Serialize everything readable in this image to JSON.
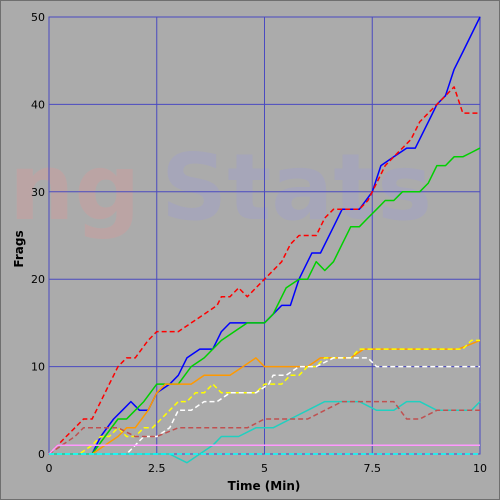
{
  "chart_data": {
    "type": "line",
    "xlabel": "Time (Min)",
    "ylabel": "Frags",
    "xlim": [
      0,
      10
    ],
    "ylim": [
      0,
      50
    ],
    "xticks": [
      "0",
      "2.5",
      "5",
      "7.5",
      "10"
    ],
    "yticks": [
      "0",
      "10",
      "20",
      "30",
      "40",
      "50"
    ],
    "grid": true,
    "watermark": {
      "prefix": "ng",
      "suffix": "Stats"
    },
    "series": [
      {
        "color": "#0000ff",
        "dash": "solid",
        "points": [
          [
            0,
            0
          ],
          [
            1,
            0
          ],
          [
            1.2,
            2
          ],
          [
            1.5,
            4
          ],
          [
            1.7,
            5
          ],
          [
            1.9,
            6
          ],
          [
            2.1,
            5
          ],
          [
            2.3,
            5
          ],
          [
            2.5,
            7
          ],
          [
            2.8,
            8
          ],
          [
            3,
            9
          ],
          [
            3.2,
            11
          ],
          [
            3.5,
            12
          ],
          [
            3.8,
            12
          ],
          [
            4,
            14
          ],
          [
            4.2,
            15
          ],
          [
            4.5,
            15
          ],
          [
            4.8,
            15
          ],
          [
            5,
            15
          ],
          [
            5.2,
            16
          ],
          [
            5.4,
            17
          ],
          [
            5.6,
            17
          ],
          [
            5.8,
            20
          ],
          [
            6.1,
            23
          ],
          [
            6.3,
            23
          ],
          [
            6.6,
            26
          ],
          [
            6.8,
            28
          ],
          [
            7.2,
            28
          ],
          [
            7.5,
            30
          ],
          [
            7.7,
            33
          ],
          [
            8,
            34
          ],
          [
            8.3,
            35
          ],
          [
            8.5,
            35
          ],
          [
            8.8,
            38
          ],
          [
            9,
            40
          ],
          [
            9.2,
            41
          ],
          [
            9.4,
            44
          ],
          [
            9.6,
            46
          ],
          [
            9.8,
            48
          ],
          [
            10,
            50
          ]
        ]
      },
      {
        "color": "#ff0000",
        "dash": "dashed",
        "points": [
          [
            0,
            0
          ],
          [
            0.4,
            2
          ],
          [
            0.6,
            3
          ],
          [
            0.8,
            4
          ],
          [
            1,
            4
          ],
          [
            1.2,
            6
          ],
          [
            1.4,
            8
          ],
          [
            1.6,
            10
          ],
          [
            1.8,
            11
          ],
          [
            2,
            11
          ],
          [
            2.3,
            13
          ],
          [
            2.5,
            14
          ],
          [
            3,
            14
          ],
          [
            3.3,
            15
          ],
          [
            3.6,
            16
          ],
          [
            3.9,
            17
          ],
          [
            4,
            18
          ],
          [
            4.2,
            18
          ],
          [
            4.4,
            19
          ],
          [
            4.6,
            18
          ],
          [
            4.8,
            19
          ],
          [
            5,
            20
          ],
          [
            5.2,
            21
          ],
          [
            5.4,
            22
          ],
          [
            5.6,
            24
          ],
          [
            5.8,
            25
          ],
          [
            6.2,
            25
          ],
          [
            6.4,
            27
          ],
          [
            6.6,
            28
          ],
          [
            7,
            28
          ],
          [
            7.2,
            28
          ],
          [
            7.4,
            29
          ],
          [
            7.6,
            31
          ],
          [
            7.8,
            33
          ],
          [
            8,
            34
          ],
          [
            8.2,
            35
          ],
          [
            8.4,
            36
          ],
          [
            8.6,
            38
          ],
          [
            8.8,
            39
          ],
          [
            9,
            40
          ],
          [
            9.2,
            41
          ],
          [
            9.4,
            42
          ],
          [
            9.6,
            39
          ],
          [
            10,
            39
          ]
        ]
      },
      {
        "color": "#00d000",
        "dash": "solid",
        "points": [
          [
            0,
            0
          ],
          [
            1,
            0
          ],
          [
            1.3,
            2
          ],
          [
            1.6,
            4
          ],
          [
            1.8,
            4
          ],
          [
            2,
            5
          ],
          [
            2.2,
            6
          ],
          [
            2.5,
            8
          ],
          [
            3,
            8
          ],
          [
            3.3,
            10
          ],
          [
            3.6,
            11
          ],
          [
            4,
            13
          ],
          [
            4.3,
            14
          ],
          [
            4.6,
            15
          ],
          [
            5,
            15
          ],
          [
            5.2,
            16
          ],
          [
            5.5,
            19
          ],
          [
            5.8,
            20
          ],
          [
            6,
            20
          ],
          [
            6.2,
            22
          ],
          [
            6.4,
            21
          ],
          [
            6.6,
            22
          ],
          [
            6.8,
            24
          ],
          [
            7,
            26
          ],
          [
            7.2,
            26
          ],
          [
            7.4,
            27
          ],
          [
            7.6,
            28
          ],
          [
            7.8,
            29
          ],
          [
            8,
            29
          ],
          [
            8.2,
            30
          ],
          [
            8.6,
            30
          ],
          [
            8.8,
            31
          ],
          [
            9,
            33
          ],
          [
            9.2,
            33
          ],
          [
            9.4,
            34
          ],
          [
            9.6,
            34
          ],
          [
            9.8,
            34.5
          ],
          [
            10,
            35
          ]
        ]
      },
      {
        "color": "#ff9900",
        "dash": "solid",
        "points": [
          [
            0,
            0
          ],
          [
            1,
            0
          ],
          [
            1.3,
            1
          ],
          [
            1.6,
            2
          ],
          [
            1.8,
            3
          ],
          [
            2,
            3
          ],
          [
            2.3,
            5
          ],
          [
            2.5,
            7
          ],
          [
            2.7,
            8
          ],
          [
            3.3,
            8
          ],
          [
            3.6,
            9
          ],
          [
            4.2,
            9
          ],
          [
            4.5,
            10
          ],
          [
            4.8,
            11
          ],
          [
            5,
            10
          ],
          [
            5.3,
            10
          ],
          [
            5.6,
            10
          ],
          [
            6,
            10
          ],
          [
            6.3,
            11
          ],
          [
            6.6,
            11
          ],
          [
            7,
            11
          ],
          [
            7.3,
            12
          ],
          [
            8,
            12
          ],
          [
            8.5,
            12
          ],
          [
            9,
            12
          ],
          [
            9.5,
            12
          ],
          [
            10,
            13
          ]
        ]
      },
      {
        "color": "#ffff00",
        "dash": "dashed",
        "points": [
          [
            0,
            0
          ],
          [
            0.7,
            0
          ],
          [
            1,
            1
          ],
          [
            1.2,
            2
          ],
          [
            1.4,
            2
          ],
          [
            1.6,
            3
          ],
          [
            1.8,
            2
          ],
          [
            2,
            2
          ],
          [
            2.2,
            3
          ],
          [
            2.4,
            3
          ],
          [
            2.6,
            4
          ],
          [
            2.8,
            5
          ],
          [
            3,
            6
          ],
          [
            3.2,
            6
          ],
          [
            3.4,
            7
          ],
          [
            3.6,
            7
          ],
          [
            3.8,
            8
          ],
          [
            4,
            7
          ],
          [
            4.2,
            7
          ],
          [
            4.5,
            7
          ],
          [
            4.8,
            7
          ],
          [
            5,
            8
          ],
          [
            5.2,
            8
          ],
          [
            5.4,
            8
          ],
          [
            5.6,
            9
          ],
          [
            5.8,
            9
          ],
          [
            6,
            10
          ],
          [
            6.2,
            10
          ],
          [
            6.4,
            11
          ],
          [
            6.8,
            11
          ],
          [
            7,
            11
          ],
          [
            7.2,
            12
          ],
          [
            7.6,
            12
          ],
          [
            8,
            12
          ],
          [
            8.5,
            12
          ],
          [
            9,
            12
          ],
          [
            9.4,
            12
          ],
          [
            9.6,
            12
          ],
          [
            9.8,
            13
          ],
          [
            10,
            13
          ]
        ]
      },
      {
        "color": "#ffffff",
        "dash": "dashed",
        "points": [
          [
            0,
            0
          ],
          [
            1.8,
            0
          ],
          [
            2.2,
            2
          ],
          [
            2.5,
            2
          ],
          [
            2.8,
            3
          ],
          [
            3,
            5
          ],
          [
            3.3,
            5
          ],
          [
            3.6,
            6
          ],
          [
            3.9,
            6
          ],
          [
            4.2,
            7
          ],
          [
            4.5,
            7
          ],
          [
            4.8,
            7
          ],
          [
            5.1,
            8
          ],
          [
            5.2,
            9
          ],
          [
            5.5,
            9
          ],
          [
            5.8,
            10
          ],
          [
            6.2,
            10
          ],
          [
            6.6,
            11
          ],
          [
            7,
            11
          ],
          [
            7.4,
            11
          ],
          [
            7.6,
            10
          ],
          [
            8,
            10
          ],
          [
            8.5,
            10
          ],
          [
            9,
            10
          ],
          [
            9.5,
            10
          ],
          [
            10,
            10
          ]
        ]
      },
      {
        "color": "#20d0c0",
        "dash": "solid",
        "points": [
          [
            0,
            0
          ],
          [
            2.8,
            0
          ],
          [
            3,
            -0.5
          ],
          [
            3.2,
            -1
          ],
          [
            3.5,
            0
          ],
          [
            3.8,
            1
          ],
          [
            4,
            2
          ],
          [
            4.4,
            2
          ],
          [
            4.8,
            3
          ],
          [
            5.2,
            3
          ],
          [
            5.6,
            4
          ],
          [
            6,
            5
          ],
          [
            6.4,
            6
          ],
          [
            6.8,
            6
          ],
          [
            7.2,
            6
          ],
          [
            7.6,
            5
          ],
          [
            8,
            5
          ],
          [
            8.3,
            6
          ],
          [
            8.6,
            6
          ],
          [
            9,
            5
          ],
          [
            9.4,
            5
          ],
          [
            9.8,
            5
          ],
          [
            10,
            6
          ]
        ]
      },
      {
        "color": "#c05050",
        "dash": "dashed",
        "points": [
          [
            0,
            0
          ],
          [
            0.6,
            2
          ],
          [
            0.8,
            3
          ],
          [
            1.2,
            3
          ],
          [
            1.6,
            3
          ],
          [
            2,
            2
          ],
          [
            2.5,
            2
          ],
          [
            3,
            3
          ],
          [
            3.5,
            3
          ],
          [
            4,
            3
          ],
          [
            4.6,
            3
          ],
          [
            5,
            4
          ],
          [
            5.6,
            4
          ],
          [
            6,
            4
          ],
          [
            6.4,
            5
          ],
          [
            6.8,
            6
          ],
          [
            7.2,
            6
          ],
          [
            7.6,
            6
          ],
          [
            8,
            6
          ],
          [
            8.3,
            4
          ],
          [
            8.6,
            4
          ],
          [
            9,
            5
          ],
          [
            9.4,
            5
          ],
          [
            10,
            5
          ]
        ]
      },
      {
        "color": "#ff99ff",
        "dash": "solid",
        "points": [
          [
            0,
            0
          ],
          [
            0.2,
            1
          ],
          [
            10,
            1
          ]
        ]
      },
      {
        "color": "#00ffff",
        "dash": "dashed",
        "points": [
          [
            0,
            0
          ],
          [
            10,
            0
          ]
        ]
      }
    ]
  }
}
